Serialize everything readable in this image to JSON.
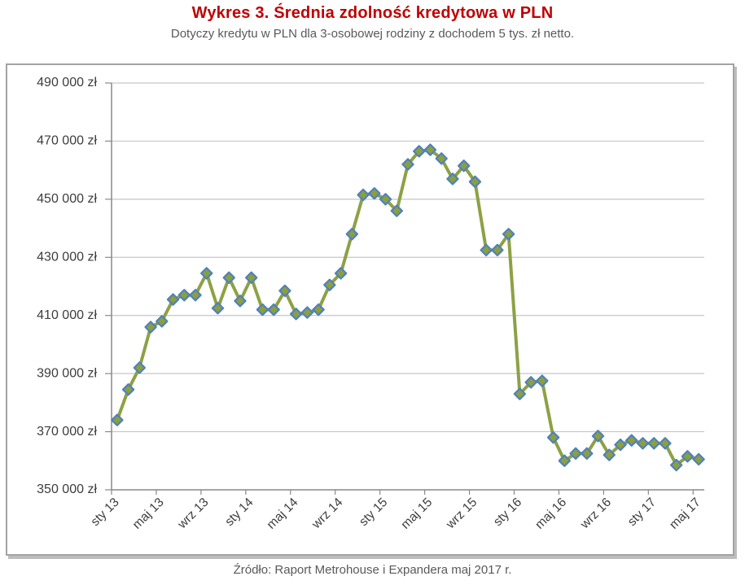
{
  "header": {
    "title": "Wykres 3. Średnia zdolność kredytowa w PLN",
    "subtitle": "Dotyczy kredytu w PLN dla 3-osobowej rodziny z dochodem 5 tys. zł netto."
  },
  "footer": {
    "source": "Źródło: Raport Metrohouse i Expandera maj 2017 r."
  },
  "chart_data": {
    "type": "line",
    "title": "Wykres 3. Średnia zdolność kredytowa w PLN",
    "subtitle": "Dotyczy kredytu w PLN dla 3-osobowej rodziny z dochodem 5 tys. zł netto.",
    "source": "Źródło: Raport Metrohouse i Expandera maj 2017 r.",
    "unit": "zł",
    "ylim": [
      350000,
      490000
    ],
    "y_step": 20000,
    "y_tick_labels": [
      "350 000 zł",
      "370 000 zł",
      "390 000 zł",
      "410 000 zł",
      "430 000 zł",
      "450 000 zł",
      "470 000 zł",
      "490 000 zł"
    ],
    "x_label_every": 4,
    "x_tick_labels": [
      "sty 13",
      "maj 13",
      "wrz 13",
      "sty 14",
      "maj 14",
      "wrz 14",
      "sty 15",
      "maj 15",
      "wrz 15",
      "sty 16",
      "maj 16",
      "wrz 16",
      "sty 17",
      "maj 17"
    ],
    "grid": true,
    "legend_position": "none",
    "marker": "diamond",
    "colors": {
      "line": "#8DA145",
      "marker_fill": "#8B9F3E",
      "marker_border": "#4F81BD",
      "gridline": "#C6C6C6",
      "axis": "#898989",
      "axis_text": "#3D3D3D",
      "title": "#C00000",
      "subtitle": "#595959"
    },
    "categories": [
      "sty 13",
      "lut 13",
      "mar 13",
      "kwi 13",
      "maj 13",
      "cze 13",
      "lip 13",
      "sie 13",
      "wrz 13",
      "paź 13",
      "lis 13",
      "gru 13",
      "sty 14",
      "lut 14",
      "mar 14",
      "kwi 14",
      "maj 14",
      "cze 14",
      "lip 14",
      "sie 14",
      "wrz 14",
      "paź 14",
      "lis 14",
      "gru 14",
      "sty 15",
      "lut 15",
      "mar 15",
      "kwi 15",
      "maj 15",
      "cze 15",
      "lip 15",
      "sie 15",
      "wrz 15",
      "paź 15",
      "lis 15",
      "gru 15",
      "sty 16",
      "lut 16",
      "mar 16",
      "kwi 16",
      "maj 16",
      "cze 16",
      "lip 16",
      "sie 16",
      "wrz 16",
      "paź 16",
      "lis 16",
      "gru 16",
      "sty 17",
      "lut 17",
      "mar 17",
      "kwi 17",
      "maj 17"
    ],
    "values": [
      374000,
      384500,
      392000,
      406000,
      408000,
      415500,
      417000,
      417000,
      424500,
      412500,
      423000,
      415000,
      423000,
      412000,
      412000,
      418500,
      410500,
      411000,
      412000,
      420500,
      424500,
      438000,
      451500,
      452000,
      450000,
      446000,
      462000,
      466500,
      467000,
      464000,
      457000,
      461500,
      456000,
      432500,
      432500,
      438000,
      383000,
      387000,
      387500,
      368000,
      360000,
      362500,
      362500,
      368500,
      362000,
      365500,
      367000,
      366000,
      366000,
      366000,
      358500,
      361500,
      360500
    ]
  }
}
